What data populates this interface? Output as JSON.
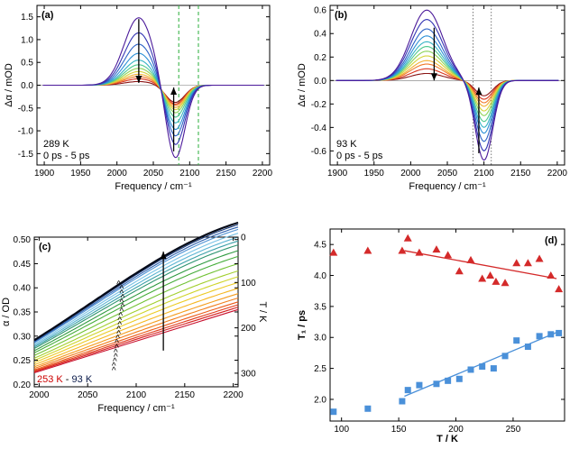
{
  "figure": {
    "panels": [
      "(a)",
      "(b)",
      "(c)",
      "(d)"
    ]
  },
  "chart_data": [
    {
      "id": "a",
      "type": "line",
      "label": "(a)",
      "xlabel": "Frequency / cm⁻¹",
      "ylabel": "Δα / mOD",
      "xlim": [
        1890,
        2210
      ],
      "ylim": [
        -1.75,
        1.75
      ],
      "xticks": [
        1900,
        1950,
        2000,
        2050,
        2100,
        2150,
        2200
      ],
      "yticks": [
        -1.5,
        -1.0,
        -0.5,
        0.0,
        0.5,
        1.0,
        1.5
      ],
      "ytick_labels": [
        "-1.5",
        "-1.0",
        "-0.5",
        "0.0",
        "0.5",
        "1.0",
        "1.5"
      ],
      "bleach_center": 2080,
      "bleach_width": 13,
      "esa_center": 2030,
      "esa_width": 20,
      "bleach_amplitudes": [
        1.65,
        1.35,
        1.15,
        1.0,
        0.85,
        0.72,
        0.62,
        0.55,
        0.5,
        0.45,
        0.42,
        0.38
      ],
      "esa_amplitudes": [
        1.48,
        1.15,
        0.9,
        0.7,
        0.55,
        0.45,
        0.37,
        0.3,
        0.24,
        0.19,
        0.14,
        0.08
      ],
      "dashed_lines_x": [
        2085,
        2112
      ],
      "arrows": [
        {
          "x": 2030,
          "from": 1.45,
          "to": 0.05
        },
        {
          "x": 2078,
          "from": -1.45,
          "to": -0.05
        }
      ],
      "annotation_temp": "289 K",
      "annotation_delay": "0 ps - 5 ps",
      "annotation_temp_color": "#000000",
      "annotation_delay_color": "#7b2fbe"
    },
    {
      "id": "b",
      "type": "line",
      "label": "(b)",
      "xlabel": "Frequency / cm⁻¹",
      "ylabel": "Δα / mOD",
      "xlim": [
        1890,
        2210
      ],
      "ylim": [
        -0.72,
        0.64
      ],
      "xticks": [
        1900,
        1950,
        2000,
        2050,
        2100,
        2150,
        2200
      ],
      "yticks": [
        -0.6,
        -0.4,
        -0.2,
        0.0,
        0.2,
        0.4,
        0.6
      ],
      "ytick_labels": [
        "-0.6",
        "-0.4",
        "-0.2",
        "0.0",
        "0.2",
        "0.4",
        "0.6"
      ],
      "bleach_center": 2100,
      "bleach_width": 12,
      "esa_center": 2022,
      "esa_width": 22,
      "bleach_amplitudes": [
        0.68,
        0.6,
        0.52,
        0.45,
        0.4,
        0.35,
        0.3,
        0.26,
        0.22,
        0.19,
        0.16,
        0.13
      ],
      "esa_amplitudes": [
        0.6,
        0.52,
        0.44,
        0.38,
        0.33,
        0.29,
        0.25,
        0.21,
        0.17,
        0.14,
        0.1,
        0.06
      ],
      "dotted_lines_x": [
        2085,
        2110
      ],
      "arrows": [
        {
          "x": 2032,
          "from": 0.45,
          "to": 0.0
        },
        {
          "x": 2093,
          "from": -0.62,
          "to": -0.06
        }
      ],
      "annotation_temp": "93 K",
      "annotation_delay": "0 ps - 5 ps",
      "annotation_temp_color": "#000000",
      "annotation_delay_color": "#7b2fbe"
    },
    {
      "id": "c",
      "type": "line",
      "label": "(c)",
      "xlabel": "Frequency / cm⁻¹",
      "ylabel": "α / OD",
      "right_label": "T / K",
      "xlim": [
        1995,
        2205
      ],
      "ylim": [
        0.195,
        0.505
      ],
      "xticks": [
        2000,
        2050,
        2100,
        2150,
        2200
      ],
      "yticks": [
        0.2,
        0.25,
        0.3,
        0.35,
        0.4,
        0.45,
        0.5
      ],
      "ytick_labels": [
        "0.20",
        "0.25",
        "0.30",
        "0.35",
        "0.40",
        "0.45",
        "0.50"
      ],
      "right_ticks": [
        0,
        100,
        200,
        300
      ],
      "right_lim": [
        0,
        330
      ],
      "curves": {
        "base_start": 0.224,
        "base_end": 0.355,
        "amplitudes": [
          0.0,
          0.005,
          0.01,
          0.016,
          0.024,
          0.033,
          0.044,
          0.056,
          0.068,
          0.08,
          0.095,
          0.11,
          0.122,
          0.134,
          0.142,
          0.15,
          0.158,
          0.166,
          0.171,
          0.176,
          0.18
        ],
        "center": 2205,
        "width": 150
      },
      "peak_marks_x": [
        2082,
        2085,
        2085,
        2086,
        2085,
        2086,
        2085,
        2084,
        2083,
        2083,
        2082,
        2082,
        2081,
        2080,
        2080,
        2079,
        2079,
        2078,
        2077,
        2077
      ],
      "arrow": {
        "x": 2128,
        "from": 0.27,
        "to": 0.475
      },
      "legend_hot": "253 K",
      "legend_sep": " - ",
      "legend_cold": "93 K",
      "legend_hot_color": "#cc0000",
      "legend_cold_color": "#0a1a4a"
    },
    {
      "id": "d",
      "type": "scatter",
      "label": "(d)",
      "xlabel": "T / K",
      "ylabel": "T₁ / ps",
      "xlim": [
        90,
        295
      ],
      "ylim": [
        1.65,
        4.75
      ],
      "xticks": [
        100,
        150,
        200,
        250
      ],
      "yticks": [
        2.0,
        2.5,
        3.0,
        3.5,
        4.0,
        4.5
      ],
      "ytick_labels": [
        "2.0",
        "2.5",
        "3.0",
        "3.5",
        "4.0",
        "4.5"
      ],
      "series": [
        {
          "name": "red-triangles",
          "marker": "triangle",
          "color": "#d42a2a",
          "x": [
            93,
            123,
            153,
            158,
            168,
            183,
            193,
            203,
            213,
            223,
            230,
            235,
            243,
            253,
            263,
            273,
            283,
            290
          ],
          "y": [
            4.37,
            4.4,
            4.4,
            4.6,
            4.37,
            4.42,
            4.33,
            4.07,
            4.25,
            3.95,
            4.0,
            3.9,
            3.88,
            4.2,
            4.2,
            4.27,
            4.0,
            3.78
          ],
          "fit": {
            "x": [
              155,
              288
            ],
            "y": [
              4.4,
              3.95
            ]
          }
        },
        {
          "name": "blue-squares",
          "marker": "square",
          "color": "#4a90d9",
          "x": [
            93,
            123,
            153,
            158,
            168,
            183,
            193,
            203,
            213,
            223,
            233,
            243,
            253,
            263,
            273,
            283,
            290
          ],
          "y": [
            1.8,
            1.85,
            1.97,
            2.15,
            2.23,
            2.25,
            2.3,
            2.33,
            2.48,
            2.53,
            2.5,
            2.7,
            2.95,
            2.85,
            3.02,
            3.05,
            3.07
          ],
          "fit": {
            "x": [
              155,
              288
            ],
            "y": [
              2.05,
              3.08
            ]
          }
        }
      ]
    }
  ]
}
